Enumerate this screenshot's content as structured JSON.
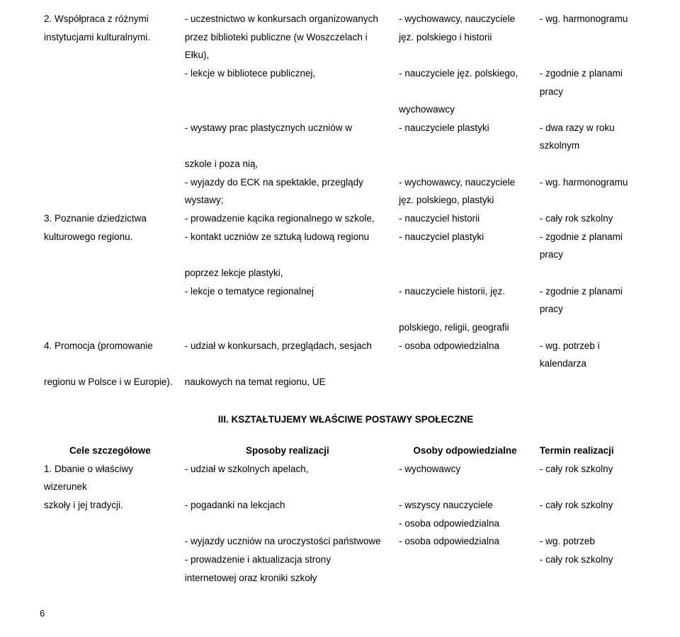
{
  "table1": {
    "rows": [
      {
        "c1": "2. Współpraca z różnymi",
        "c2": "- uczestnictwo w konkursach organizowanych",
        "c3": "- wychowawcy, nauczyciele",
        "c4": "- wg. harmonogramu"
      },
      {
        "c1": "instytucjami kulturalnymi.",
        "c2": "przez biblioteki publiczne (w Woszczelach i",
        "c3": "jęz. polskiego i historii",
        "c4": ""
      },
      {
        "c1": "",
        "c2": "Ełku),",
        "c3": "",
        "c4": ""
      },
      {
        "c1": "",
        "c2": "- lekcje w bibliotece publicznej,",
        "c3": "- nauczyciele jęz. polskiego,",
        "c4": "- zgodnie z planami pracy"
      },
      {
        "c1": "",
        "c2": "",
        "c3": "wychowawcy",
        "c4": ""
      },
      {
        "c1": "",
        "c2": "- wystawy prac plastycznych uczniów w",
        "c3": "- nauczyciele plastyki",
        "c4": "- dwa razy w  roku szkolnym"
      },
      {
        "c1": "",
        "c2": "szkole i poza nią,",
        "c3": "",
        "c4": ""
      },
      {
        "c1": "",
        "c2": "- wyjazdy do ECK  na spektakle, przeglądy",
        "c3": "- wychowawcy, nauczyciele",
        "c4": "- wg. harmonogramu"
      },
      {
        "c1": "",
        "c2": "wystawy;",
        "c3": "jęz. polskiego, plastyki",
        "c4": ""
      },
      {
        "c1": "3. Poznanie dziedzictwa",
        "c2": "- prowadzenie kącika regionalnego w szkole,",
        "c3": "- nauczyciel historii",
        "c4": "- cały rok szkolny"
      },
      {
        "c1": "kulturowego regionu.",
        "c2": "- kontakt uczniów ze sztuką ludową regionu",
        "c3": "- nauczyciel plastyki",
        "c4": "- zgodnie z planami pracy"
      },
      {
        "c1": "",
        "c2": "poprzez lekcje plastyki,",
        "c3": "",
        "c4": ""
      },
      {
        "c1": "",
        "c2": "- lekcje o tematyce regionalnej",
        "c3": "- nauczyciele historii, jęz.",
        "c4": "- zgodnie z planami pracy"
      },
      {
        "c1": "",
        "c2": "",
        "c3": "polskiego, religii, geografii",
        "c4": ""
      },
      {
        "c1": "4.  Promocja (promowanie",
        "c2": "- udział w konkursach, przeglądach, sesjach",
        "c3": "- osoba odpowiedzialna",
        "c4": "- wg. potrzeb i kalendarza"
      },
      {
        "c1": "regionu w Polsce i w Europie).",
        "c2": "naukowych na temat regionu, UE",
        "c3": "",
        "c4": ""
      }
    ]
  },
  "section3": {
    "title": "III.  KSZTAŁTUJEMY  WŁAŚCIWE  POSTAWY  SPOŁECZNE",
    "headers": {
      "h1": "Cele szczegółowe",
      "h2": "Sposoby realizacji",
      "h3": "Osoby odpowiedzialne",
      "h4": "Termin realizacji"
    },
    "rows": [
      {
        "c1": "1. Dbanie o właściwy wizerunek",
        "c2": "- udział w szkolnych apelach,",
        "c3": "- wychowawcy",
        "c4": "- cały rok szkolny"
      },
      {
        "c1": "szkoły i jej tradycji.",
        "c2": "- pogadanki na lekcjach",
        "c3": "- wszyscy nauczyciele",
        "c4": "- cały rok szkolny"
      },
      {
        "c1": "",
        "c2": "",
        "c3": "- osoba odpowiedzialna",
        "c4": ""
      },
      {
        "c1": "",
        "c2": "- wyjazdy uczniów na uroczystości państwowe",
        "c3": "- osoba odpowiedzialna",
        "c4": "- wg. potrzeb"
      },
      {
        "c1": "",
        "c2": "- prowadzenie i aktualizacja strony",
        "c3": "",
        "c4": "- cały rok szkolny"
      },
      {
        "c1": "",
        "c2": "internetowej oraz kroniki szkoły",
        "c3": "",
        "c4": ""
      }
    ]
  },
  "pagenum": "6"
}
